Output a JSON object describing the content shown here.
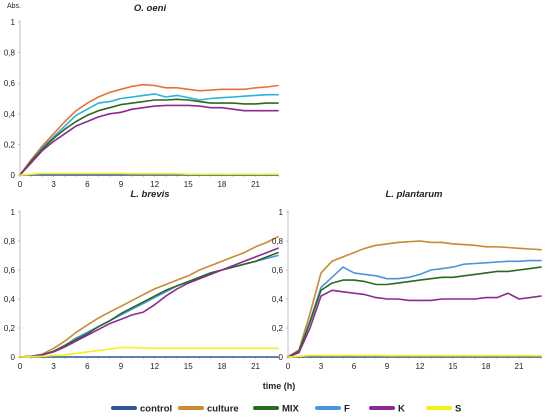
{
  "figure": {
    "xlabel": "time (h)",
    "yunit": "Abs."
  },
  "legend": [
    {
      "name": "control",
      "color": "#2E5597"
    },
    {
      "name": "culture",
      "color": "#C98A32"
    },
    {
      "name": "MIX",
      "color": "#2A6A1E"
    },
    {
      "name": "F",
      "color": "#4A96DC"
    },
    {
      "name": "K",
      "color": "#8C2A92"
    },
    {
      "name": "S",
      "color": "#F2F21A"
    }
  ],
  "chart_data": [
    {
      "type": "line",
      "title": "O. oeni",
      "xticks": [
        "0",
        "3",
        "6",
        "9",
        "12",
        "15",
        "18",
        "21"
      ],
      "yticks": [
        "0",
        "0,2",
        "0,4",
        "0,6",
        "0,8",
        "1"
      ],
      "xlim": [
        0,
        23
      ],
      "ylim": [
        0,
        1
      ],
      "x": [
        0,
        1,
        2,
        3,
        4,
        5,
        6,
        7,
        8,
        9,
        10,
        11,
        12,
        13,
        14,
        15,
        16,
        17,
        18,
        19,
        20,
        21,
        22,
        23
      ],
      "series": [
        {
          "name": "control",
          "color": "#2E5597",
          "values": [
            0,
            0,
            0,
            0,
            0,
            0,
            0,
            0,
            0,
            0,
            0,
            0,
            0,
            0,
            0,
            0,
            0,
            0,
            0,
            0,
            0,
            0,
            0,
            0
          ]
        },
        {
          "name": "culture",
          "color": "#E9703A",
          "values": [
            0,
            0.1,
            0.19,
            0.27,
            0.35,
            0.42,
            0.47,
            0.51,
            0.54,
            0.56,
            0.58,
            0.59,
            0.585,
            0.57,
            0.57,
            0.56,
            0.55,
            0.555,
            0.56,
            0.56,
            0.56,
            0.57,
            0.575,
            0.585
          ]
        },
        {
          "name": "F",
          "color": "#2CB2D8",
          "values": [
            0,
            0.09,
            0.18,
            0.25,
            0.32,
            0.39,
            0.43,
            0.47,
            0.48,
            0.5,
            0.51,
            0.52,
            0.53,
            0.51,
            0.52,
            0.505,
            0.49,
            0.5,
            0.505,
            0.51,
            0.515,
            0.52,
            0.525,
            0.525
          ]
        },
        {
          "name": "MIX",
          "color": "#2A6A1E",
          "values": [
            0,
            0.09,
            0.17,
            0.24,
            0.3,
            0.35,
            0.39,
            0.42,
            0.44,
            0.46,
            0.47,
            0.48,
            0.49,
            0.49,
            0.495,
            0.49,
            0.48,
            0.47,
            0.47,
            0.47,
            0.465,
            0.465,
            0.47,
            0.47
          ]
        },
        {
          "name": "K",
          "color": "#8C2A92",
          "values": [
            0,
            0.08,
            0.16,
            0.22,
            0.27,
            0.32,
            0.35,
            0.38,
            0.4,
            0.41,
            0.43,
            0.44,
            0.45,
            0.455,
            0.455,
            0.455,
            0.45,
            0.44,
            0.44,
            0.43,
            0.42,
            0.42,
            0.42,
            0.42
          ]
        },
        {
          "name": "S",
          "color": "#F2F21A",
          "values": [
            0,
            0.005,
            0.01,
            0.01,
            0.01,
            0.01,
            0.01,
            0.01,
            0.01,
            0.01,
            0.008,
            0.008,
            0.008,
            0.008,
            0.008,
            0.005,
            0.005,
            0.005,
            0.005,
            0.005,
            0.005,
            0.005,
            0.005,
            0.005
          ]
        }
      ]
    },
    {
      "type": "line",
      "title": "L. brevis",
      "xticks": [
        "0",
        "3",
        "6",
        "9",
        "12",
        "15",
        "18",
        "21"
      ],
      "yticks": [
        "0",
        "0,2",
        "0,4",
        "0,6",
        "0,8",
        "1"
      ],
      "xlim": [
        0,
        23
      ],
      "ylim": [
        0,
        1
      ],
      "x": [
        0,
        1,
        2,
        3,
        4,
        5,
        6,
        7,
        8,
        9,
        10,
        11,
        12,
        13,
        14,
        15,
        16,
        17,
        18,
        19,
        20,
        21,
        22,
        23
      ],
      "series": [
        {
          "name": "control",
          "color": "#2E5597",
          "values": [
            0,
            0,
            0,
            0,
            0,
            0,
            0,
            0,
            0,
            0,
            0,
            0,
            0,
            0,
            0,
            0,
            0,
            0,
            0,
            0,
            0,
            0,
            0,
            0
          ]
        },
        {
          "name": "culture",
          "color": "#C98A32",
          "values": [
            0,
            0.005,
            0.02,
            0.06,
            0.11,
            0.17,
            0.22,
            0.27,
            0.31,
            0.35,
            0.39,
            0.43,
            0.47,
            0.5,
            0.53,
            0.56,
            0.6,
            0.63,
            0.66,
            0.69,
            0.72,
            0.76,
            0.79,
            0.83
          ]
        },
        {
          "name": "F",
          "color": "#4A96DC",
          "values": [
            0,
            0.005,
            0.015,
            0.04,
            0.08,
            0.13,
            0.17,
            0.21,
            0.25,
            0.29,
            0.33,
            0.37,
            0.41,
            0.45,
            0.49,
            0.52,
            0.55,
            0.58,
            0.6,
            0.62,
            0.64,
            0.66,
            0.68,
            0.7
          ]
        },
        {
          "name": "MIX",
          "color": "#2A6A1E",
          "values": [
            0,
            0.005,
            0.015,
            0.04,
            0.08,
            0.12,
            0.16,
            0.21,
            0.25,
            0.3,
            0.34,
            0.38,
            0.42,
            0.46,
            0.49,
            0.52,
            0.55,
            0.58,
            0.6,
            0.62,
            0.64,
            0.66,
            0.69,
            0.72
          ]
        },
        {
          "name": "K",
          "color": "#8C2A92",
          "values": [
            0,
            0.005,
            0.015,
            0.035,
            0.07,
            0.11,
            0.15,
            0.19,
            0.23,
            0.26,
            0.29,
            0.31,
            0.36,
            0.42,
            0.47,
            0.51,
            0.54,
            0.57,
            0.6,
            0.63,
            0.66,
            0.69,
            0.72,
            0.75
          ]
        },
        {
          "name": "S",
          "color": "#F2F21A",
          "values": [
            0,
            0.002,
            0.005,
            0.01,
            0.015,
            0.025,
            0.035,
            0.045,
            0.055,
            0.065,
            0.065,
            0.062,
            0.06,
            0.06,
            0.06,
            0.06,
            0.06,
            0.06,
            0.06,
            0.06,
            0.06,
            0.06,
            0.06,
            0.06
          ]
        }
      ]
    },
    {
      "type": "line",
      "title": "L. plantarum",
      "xticks": [
        "0",
        "3",
        "6",
        "9",
        "12",
        "15",
        "18",
        "21"
      ],
      "yticks": [
        "0",
        "0,2",
        "0,4",
        "0,6",
        "0,8",
        "1"
      ],
      "xlim": [
        0,
        23
      ],
      "ylim": [
        0,
        1
      ],
      "x": [
        0,
        1,
        2,
        3,
        4,
        5,
        6,
        7,
        8,
        9,
        10,
        11,
        12,
        13,
        14,
        15,
        16,
        17,
        18,
        19,
        20,
        21,
        22,
        23
      ],
      "series": [
        {
          "name": "control",
          "color": "#2E5597",
          "values": [
            0,
            0,
            0,
            0,
            0,
            0,
            0,
            0,
            0,
            0,
            0,
            0,
            0,
            0,
            0,
            0,
            0,
            0,
            0,
            0,
            0,
            0,
            0,
            0
          ]
        },
        {
          "name": "culture",
          "color": "#C98A32",
          "values": [
            0,
            0.05,
            0.3,
            0.58,
            0.66,
            0.69,
            0.72,
            0.75,
            0.77,
            0.78,
            0.79,
            0.795,
            0.8,
            0.79,
            0.79,
            0.78,
            0.775,
            0.77,
            0.76,
            0.76,
            0.755,
            0.75,
            0.745,
            0.74
          ]
        },
        {
          "name": "F",
          "color": "#4A96DC",
          "values": [
            0,
            0.04,
            0.25,
            0.48,
            0.55,
            0.62,
            0.58,
            0.57,
            0.56,
            0.54,
            0.54,
            0.55,
            0.57,
            0.6,
            0.61,
            0.62,
            0.64,
            0.645,
            0.65,
            0.655,
            0.66,
            0.66,
            0.665,
            0.665
          ]
        },
        {
          "name": "MIX",
          "color": "#2A6A1E",
          "values": [
            0,
            0.04,
            0.24,
            0.46,
            0.51,
            0.53,
            0.53,
            0.52,
            0.5,
            0.5,
            0.51,
            0.52,
            0.53,
            0.54,
            0.55,
            0.55,
            0.56,
            0.57,
            0.58,
            0.59,
            0.59,
            0.6,
            0.61,
            0.62
          ]
        },
        {
          "name": "K",
          "color": "#8C2A92",
          "values": [
            0,
            0.03,
            0.2,
            0.42,
            0.46,
            0.45,
            0.44,
            0.43,
            0.41,
            0.4,
            0.4,
            0.39,
            0.39,
            0.39,
            0.4,
            0.4,
            0.4,
            0.4,
            0.41,
            0.41,
            0.44,
            0.4,
            0.41,
            0.42
          ]
        },
        {
          "name": "S",
          "color": "#F2F21A",
          "values": [
            0,
            0.005,
            0.01,
            0.01,
            0.01,
            0.01,
            0.01,
            0.01,
            0.01,
            0.008,
            0.008,
            0.008,
            0.008,
            0.008,
            0.008,
            0.008,
            0.008,
            0.008,
            0.008,
            0.008,
            0.008,
            0.008,
            0.008,
            0.008
          ]
        }
      ]
    }
  ]
}
